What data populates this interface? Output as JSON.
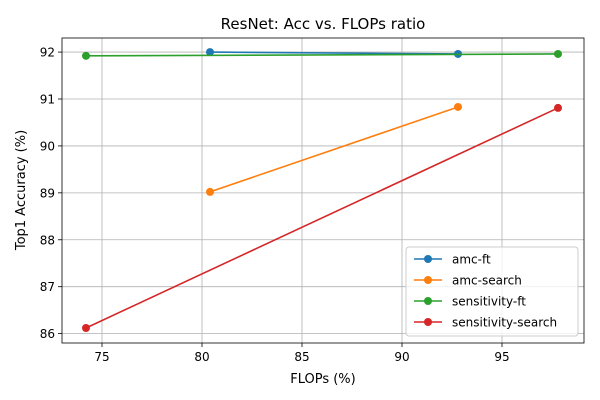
{
  "chart_data": {
    "type": "line",
    "title": "ResNet: Acc vs. FLOPs ratio",
    "xlabel": "FLOPs (%)",
    "ylabel": "Top1 Accuracy (%)",
    "xlim": [
      73.0,
      99.1
    ],
    "ylim": [
      85.8,
      92.3
    ],
    "xticks": [
      75,
      80,
      85,
      90,
      95
    ],
    "yticks": [
      86,
      87,
      88,
      89,
      90,
      91,
      92
    ],
    "grid": true,
    "legend_position": "lower-right",
    "series": [
      {
        "name": "amc-ft",
        "color": "#1f77b4",
        "points": [
          [
            80.4,
            92.0
          ],
          [
            92.8,
            91.96
          ]
        ]
      },
      {
        "name": "amc-search",
        "color": "#ff7f0e",
        "points": [
          [
            80.4,
            89.02
          ],
          [
            92.8,
            90.83
          ]
        ]
      },
      {
        "name": "sensitivity-ft",
        "color": "#2ca02c",
        "points": [
          [
            74.2,
            91.92
          ],
          [
            97.8,
            91.96
          ]
        ]
      },
      {
        "name": "sensitivity-search",
        "color": "#d62728",
        "points": [
          [
            74.2,
            86.12
          ],
          [
            97.8,
            90.81
          ]
        ]
      }
    ]
  }
}
